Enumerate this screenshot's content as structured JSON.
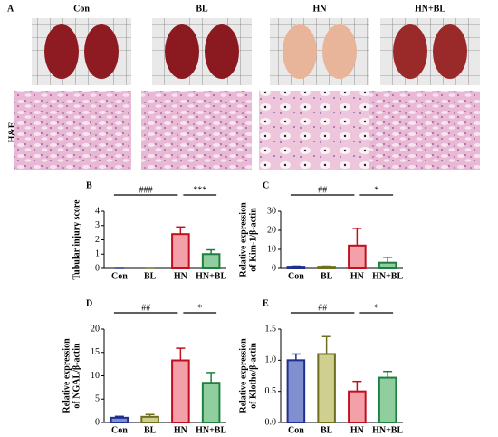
{
  "panel_a": {
    "label": "A",
    "groups": [
      "Con",
      "BL",
      "HN",
      "HN+BL"
    ],
    "stain": "H&E"
  },
  "chart_data": [
    {
      "type": "bar",
      "label": "B",
      "ylabel": [
        "Tubular injury score"
      ],
      "categories": [
        "Con",
        "BL",
        "HN",
        "HN+BL"
      ],
      "values": [
        0,
        0,
        2.4,
        1.0
      ],
      "errors": [
        0,
        0,
        0.5,
        0.3
      ],
      "colors": [
        "#7f8fcf",
        "#cfcf8f",
        "#f4a0a8",
        "#8fcf9f"
      ],
      "edge_colors": [
        "#1f2f8f",
        "#6f6f1f",
        "#c0101f",
        "#1f7f3f"
      ],
      "ylim": [
        0,
        4
      ],
      "yticks": [
        0,
        1,
        2,
        3,
        4
      ],
      "annotations": [
        "###",
        "***"
      ]
    },
    {
      "type": "bar",
      "label": "C",
      "ylabel": [
        "Relative expression",
        "of Kim-1/β-actin"
      ],
      "categories": [
        "Con",
        "BL",
        "HN",
        "HN+BL"
      ],
      "values": [
        0.9,
        0.9,
        12,
        3
      ],
      "errors": [
        0.3,
        0.3,
        9,
        2.8
      ],
      "colors": [
        "#7f8fcf",
        "#cfcf8f",
        "#f4a0a8",
        "#8fcf9f"
      ],
      "edge_colors": [
        "#1f2f8f",
        "#6f6f1f",
        "#c0101f",
        "#1f7f3f"
      ],
      "ylim": [
        0,
        30
      ],
      "yticks": [
        0,
        10,
        20,
        30
      ],
      "annotations": [
        "##",
        "*"
      ]
    },
    {
      "type": "bar",
      "label": "D",
      "ylabel": [
        "Relative expression",
        "of NGAL/β-actin"
      ],
      "categories": [
        "Con",
        "BL",
        "HN",
        "HN+BL"
      ],
      "values": [
        1.0,
        1.2,
        13.3,
        8.5
      ],
      "errors": [
        0.3,
        0.5,
        2.6,
        2.2
      ],
      "colors": [
        "#7f8fcf",
        "#cfcf8f",
        "#f4a0a8",
        "#8fcf9f"
      ],
      "edge_colors": [
        "#1f2f8f",
        "#6f6f1f",
        "#c0101f",
        "#1f7f3f"
      ],
      "ylim": [
        0,
        20
      ],
      "yticks": [
        0,
        5,
        10,
        15,
        20
      ],
      "annotations": [
        "##",
        "*"
      ]
    },
    {
      "type": "bar",
      "label": "E",
      "ylabel": [
        "Relative expression",
        "of Klotho/β-actin"
      ],
      "categories": [
        "Con",
        "BL",
        "HN",
        "HN+BL"
      ],
      "values": [
        1.0,
        1.1,
        0.5,
        0.72
      ],
      "errors": [
        0.1,
        0.28,
        0.16,
        0.1
      ],
      "colors": [
        "#7f8fcf",
        "#cfcf8f",
        "#f4a0a8",
        "#8fcf9f"
      ],
      "edge_colors": [
        "#1f2f8f",
        "#6f6f1f",
        "#c0101f",
        "#1f7f3f"
      ],
      "ylim": [
        0,
        1.5
      ],
      "yticks": [
        {
          "value": 0,
          "label": "0.0"
        },
        {
          "value": 0.5,
          "label": "0.5"
        },
        {
          "value": 1,
          "label": "1.0"
        },
        {
          "value": 1.5,
          "label": "1.5"
        }
      ],
      "annotations": [
        "##",
        "*"
      ]
    }
  ]
}
